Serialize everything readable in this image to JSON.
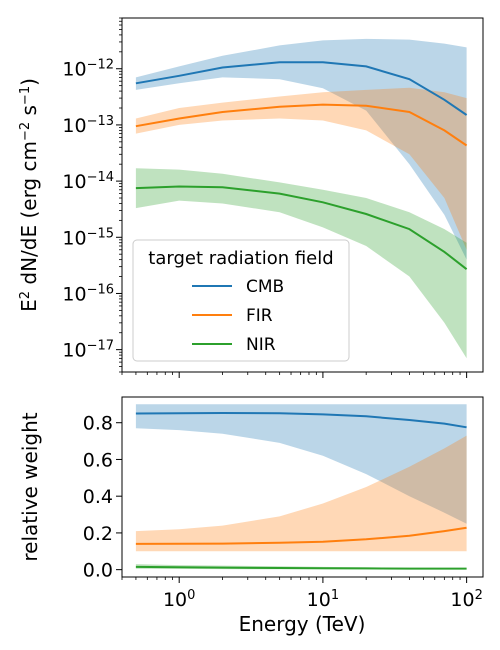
{
  "colors": {
    "CMB": "#1f77b4",
    "FIR": "#ff7f0e",
    "NIR": "#2ca02c"
  },
  "chart_data": [
    {
      "type": "line",
      "panel": "top",
      "xscale": "log",
      "yscale": "log",
      "xlim": [
        0.4,
        130
      ],
      "ylim": [
        4e-18,
        8e-12
      ],
      "grid": false,
      "ylabel_parts": {
        "main": "E",
        "sup1": "2",
        "mid": " dN/dE (erg cm",
        "sup2": "−2",
        "s": " s",
        "sup3": "−1",
        "end": ")"
      },
      "yticks": [
        {
          "value": 1e-12,
          "label_base": "10",
          "label_exp": "−12"
        },
        {
          "value": 1e-13,
          "label_base": "10",
          "label_exp": "−13"
        },
        {
          "value": 1e-14,
          "label_base": "10",
          "label_exp": "−14"
        },
        {
          "value": 1e-15,
          "label_base": "10",
          "label_exp": "−15"
        },
        {
          "value": 1e-16,
          "label_base": "10",
          "label_exp": "−16"
        },
        {
          "value": 1e-17,
          "label_base": "10",
          "label_exp": "−17"
        }
      ],
      "legend": {
        "title": "target radiation field",
        "placement": "lower-left",
        "entries": [
          "CMB",
          "FIR",
          "NIR"
        ]
      },
      "x": [
        0.5,
        1,
        2,
        5,
        10,
        20,
        40,
        70,
        100
      ],
      "series": [
        {
          "name": "CMB",
          "values": [
            5.5e-13,
            7.5e-13,
            1.05e-12,
            1.3e-12,
            1.3e-12,
            1.1e-12,
            6.5e-13,
            2.8e-13,
            1.5e-13
          ],
          "upper": [
            7e-13,
            1.1e-12,
            1.7e-12,
            2.6e-12,
            3.2e-12,
            3.4e-12,
            3.3e-12,
            2.8e-12,
            2.4e-12
          ],
          "lower": [
            4.2e-13,
            5.5e-13,
            7e-13,
            6.5e-13,
            4.5e-13,
            1.8e-13,
            2e-14,
            2.5e-15,
            4e-16
          ]
        },
        {
          "name": "FIR",
          "values": [
            9.5e-14,
            1.3e-13,
            1.7e-13,
            2.1e-13,
            2.3e-13,
            2.2e-13,
            1.7e-13,
            8e-14,
            4.3e-14
          ],
          "upper": [
            1.3e-13,
            2e-13,
            2.5e-13,
            3.2e-13,
            3.8e-13,
            4.2e-13,
            4.6e-13,
            3.8e-13,
            3e-13
          ],
          "lower": [
            7e-14,
            1e-13,
            1.2e-13,
            1.3e-13,
            1.2e-13,
            8e-14,
            3e-14,
            5e-15,
            6e-16
          ]
        },
        {
          "name": "NIR",
          "values": [
            7.5e-15,
            8e-15,
            7.8e-15,
            6e-15,
            4.2e-15,
            2.6e-15,
            1.4e-15,
            5.5e-16,
            2.7e-16
          ],
          "upper": [
            1.7e-14,
            1.6e-14,
            1.35e-14,
            9.5e-15,
            7e-15,
            5e-15,
            2.8e-15,
            1.4e-15,
            8e-16
          ],
          "lower": [
            3.3e-15,
            4.5e-15,
            4e-15,
            2.8e-15,
            1.5e-15,
            7e-16,
            2e-16,
            3e-17,
            7e-18
          ]
        }
      ]
    },
    {
      "type": "line",
      "panel": "bottom",
      "xscale": "log",
      "yscale": "linear",
      "xlim": [
        0.4,
        130
      ],
      "ylim": [
        -0.04,
        0.94
      ],
      "grid": false,
      "ylabel": "relative weight",
      "xlabel": "Energy (TeV)",
      "yticks": [
        {
          "value": 0.0,
          "label": "0.0"
        },
        {
          "value": 0.2,
          "label": "0.2"
        },
        {
          "value": 0.4,
          "label": "0.4"
        },
        {
          "value": 0.6,
          "label": "0.6"
        },
        {
          "value": 0.8,
          "label": "0.8"
        }
      ],
      "xticks": [
        {
          "value": 1,
          "label_base": "10",
          "label_exp": "0"
        },
        {
          "value": 10,
          "label_base": "10",
          "label_exp": "1"
        },
        {
          "value": 100,
          "label_base": "10",
          "label_exp": "2"
        }
      ],
      "x": [
        0.5,
        1,
        2,
        5,
        10,
        20,
        40,
        70,
        100
      ],
      "series": [
        {
          "name": "CMB",
          "values": [
            0.85,
            0.852,
            0.853,
            0.851,
            0.845,
            0.835,
            0.815,
            0.795,
            0.775
          ],
          "upper": [
            0.9,
            0.9,
            0.9,
            0.9,
            0.9,
            0.9,
            0.9,
            0.9,
            0.9
          ],
          "lower": [
            0.77,
            0.76,
            0.74,
            0.69,
            0.62,
            0.52,
            0.4,
            0.31,
            0.25
          ]
        },
        {
          "name": "FIR",
          "values": [
            0.14,
            0.141,
            0.142,
            0.146,
            0.152,
            0.165,
            0.185,
            0.21,
            0.228
          ],
          "upper": [
            0.21,
            0.22,
            0.24,
            0.29,
            0.36,
            0.45,
            0.56,
            0.66,
            0.73
          ],
          "lower": [
            0.1,
            0.1,
            0.1,
            0.1,
            0.1,
            0.1,
            0.1,
            0.1,
            0.1
          ]
        },
        {
          "name": "NIR",
          "values": [
            0.015,
            0.013,
            0.011,
            0.009,
            0.008,
            0.007,
            0.006,
            0.006,
            0.006
          ],
          "upper": [
            0.03,
            0.025,
            0.022,
            0.018,
            0.015,
            0.012,
            0.01,
            0.009,
            0.008
          ],
          "lower": [
            0.005,
            0.004,
            0.003,
            0.002,
            0.002,
            0.001,
            0.001,
            0.001,
            0.001
          ]
        }
      ]
    }
  ]
}
